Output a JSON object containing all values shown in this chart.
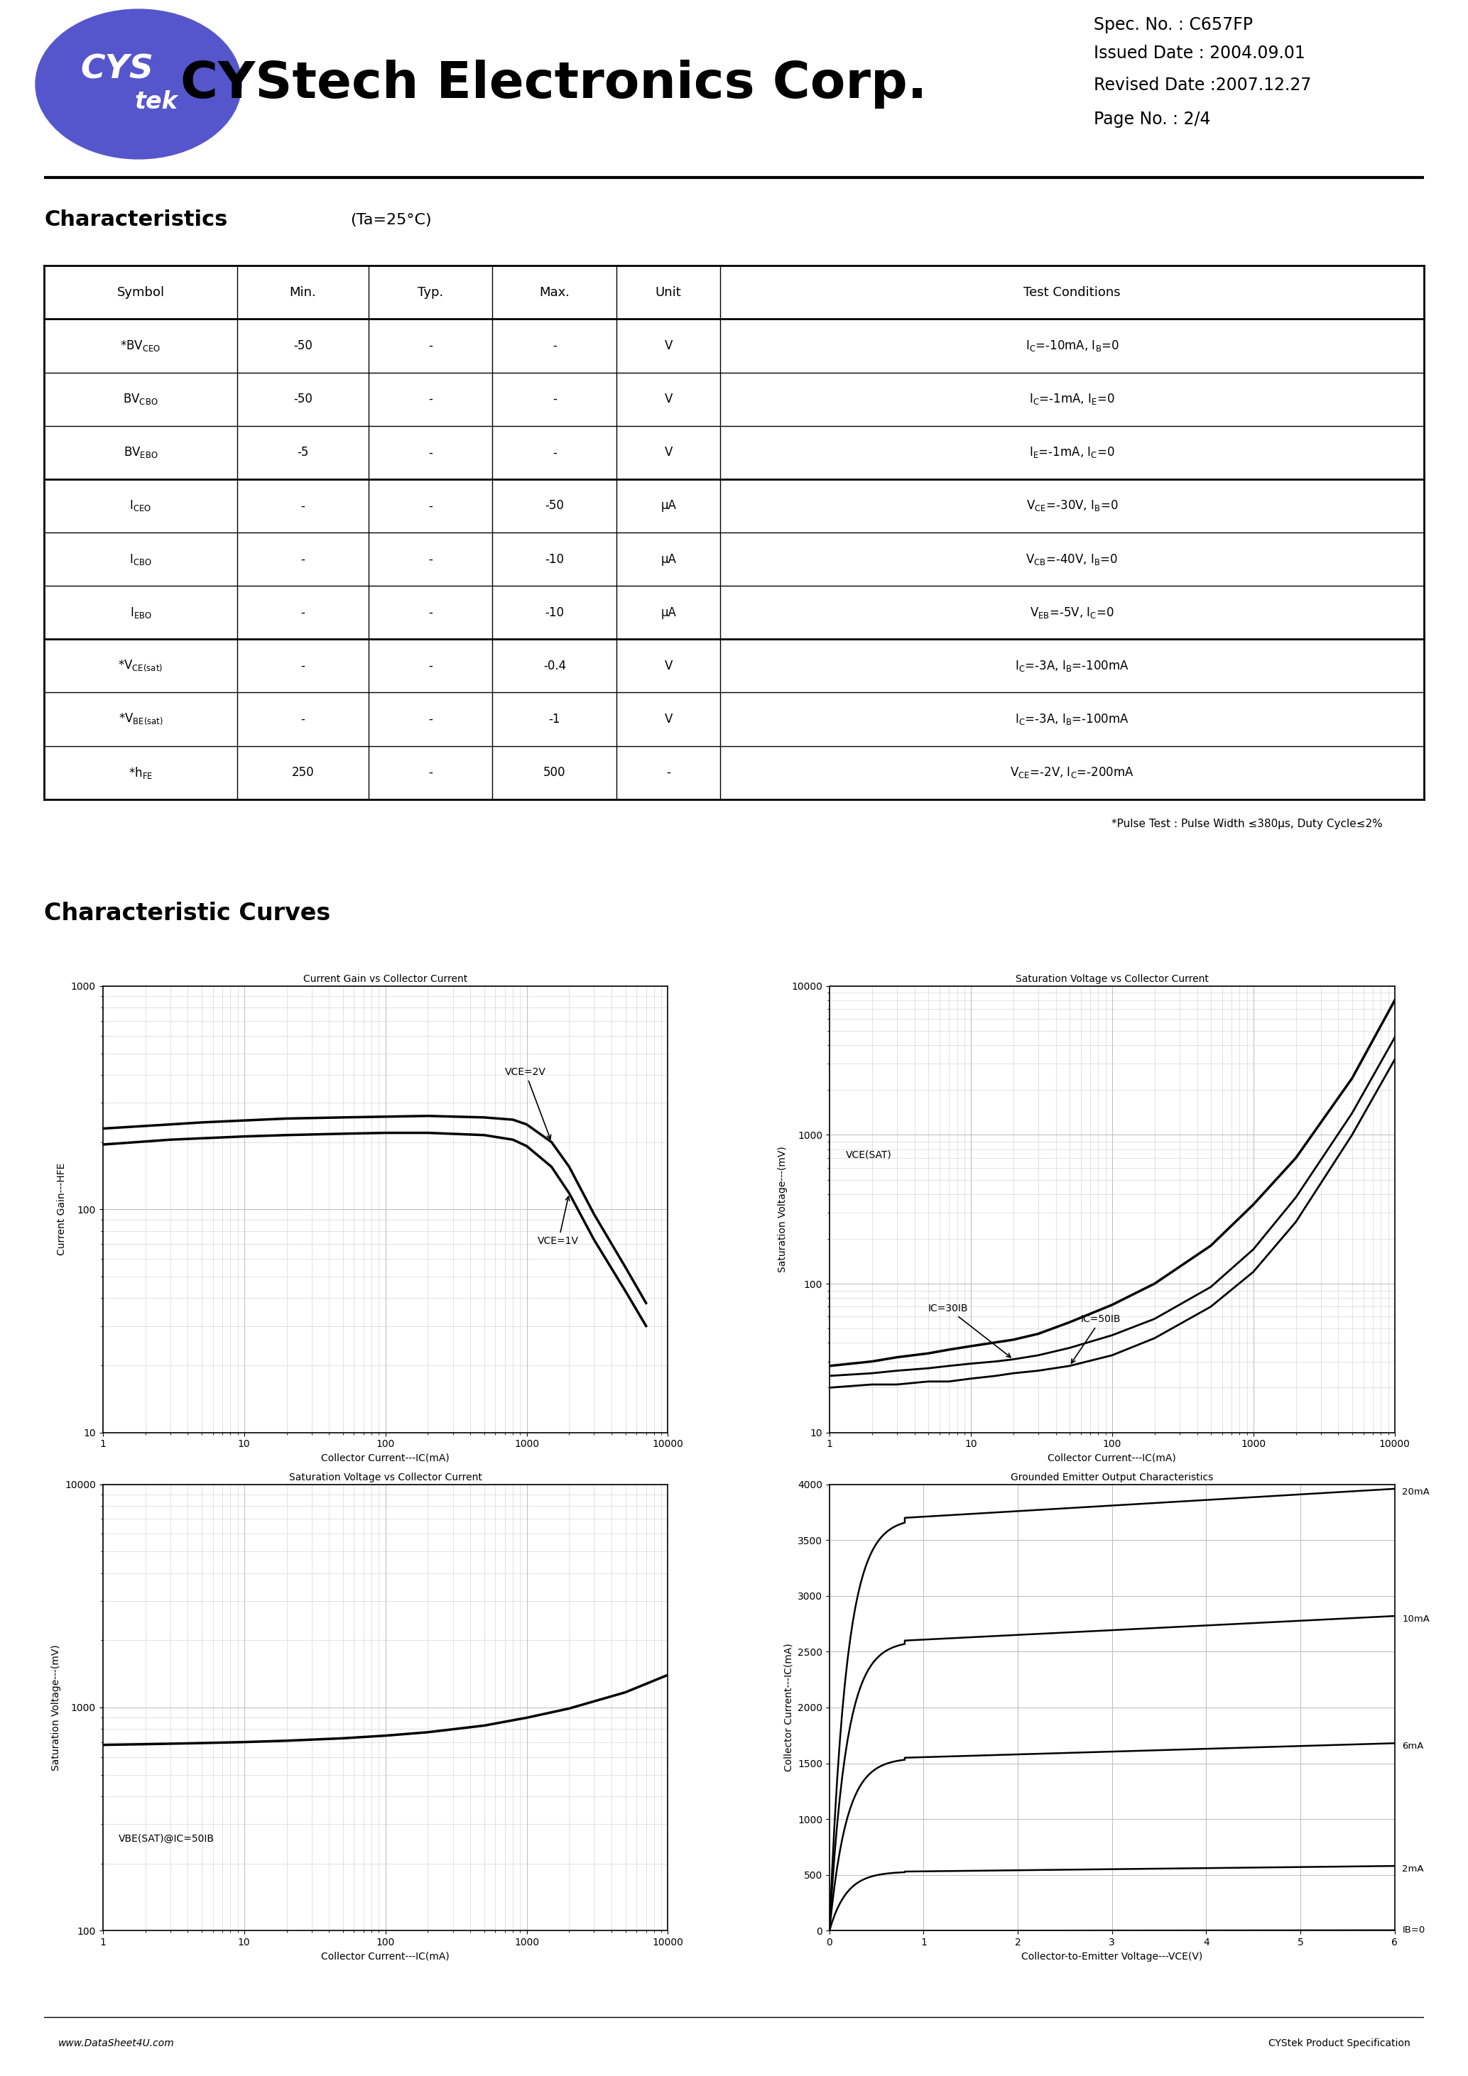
{
  "title_company": "CYStech Electronics Corp.",
  "spec_no": "Spec. No. : C657FP",
  "issued_date": "Issued Date : 2004.09.01",
  "revised_date": "Revised Date :2007.12.27",
  "page_no": "Page No. : 2/4",
  "section_title": "Characteristics",
  "section_subtitle": "(Ta=25°C)",
  "table_headers": [
    "Symbol",
    "Min.",
    "Typ.",
    "Max.",
    "Unit",
    "Test Conditions"
  ],
  "symbols_display": [
    "*BV$_{\\mathsf{CEO}}$",
    "BV$_{\\mathsf{CBO}}$",
    "BV$_{\\mathsf{EBO}}$",
    "I$_{\\mathsf{CEO}}$",
    "I$_{\\mathsf{CBO}}$",
    "I$_{\\mathsf{EBO}}$",
    "*V$_{\\mathsf{CE(sat)}}$",
    "*V$_{\\mathsf{BE(sat)}}$",
    "*h$_{\\mathsf{FE}}$"
  ],
  "min_vals": [
    "-50",
    "-50",
    "-5",
    "-",
    "-",
    "-",
    "-",
    "-",
    "250"
  ],
  "typ_vals": [
    "-",
    "-",
    "-",
    "-",
    "-",
    "-",
    "-",
    "-",
    "-"
  ],
  "max_vals": [
    "-",
    "-",
    "-",
    "-50",
    "-10",
    "-10",
    "-0.4",
    "-1",
    "500"
  ],
  "units": [
    "V",
    "V",
    "V",
    "μA",
    "μA",
    "μA",
    "V",
    "V",
    "-"
  ],
  "conditions": [
    "I$_{\\mathsf{C}}$=-10mA, I$_{\\mathsf{B}}$=0",
    "I$_{\\mathsf{C}}$=-1mA, I$_{\\mathsf{E}}$=0",
    "I$_{\\mathsf{E}}$=-1mA, I$_{\\mathsf{C}}$=0",
    "V$_{\\mathsf{CE}}$=-30V, I$_{\\mathsf{B}}$=0",
    "V$_{\\mathsf{CB}}$=-40V, I$_{\\mathsf{B}}$=0",
    "V$_{\\mathsf{EB}}$=-5V, I$_{\\mathsf{C}}$=0",
    "I$_{\\mathsf{C}}$=-3A, I$_{\\mathsf{B}}$=-100mA",
    "I$_{\\mathsf{C}}$=-3A, I$_{\\mathsf{B}}$=-100mA",
    "V$_{\\mathsf{CE}}$=-2V, I$_{\\mathsf{C}}$=-200mA"
  ],
  "pulse_test_note": "*Pulse Test : Pulse Width ≤380μs, Duty Cycle≤2%",
  "curves_title": "Characteristic Curves",
  "plot1_title": "Current Gain vs Collector Current",
  "plot1_xlabel": "Collector Current---IC(mA)",
  "plot1_ylabel": "Current Gain---HFE",
  "plot2_title": "Saturation Voltage vs Collector Current",
  "plot2_xlabel": "Collector Current---IC(mA)",
  "plot2_ylabel": "Saturation Voltage---(mV)",
  "plot3_title": "Saturation Voltage vs Collector Current",
  "plot3_xlabel": "Collector Current---IC(mA)",
  "plot3_ylabel": "Saturation Voltage---(mV)",
  "plot4_title": "Grounded Emitter Output Characteristics",
  "plot4_xlabel": "Collector-to-Emitter Voltage---VCE(V)",
  "plot4_ylabel": "Collector Current---IC(mA)",
  "background_color": "#ffffff",
  "grid_color": "#aaaaaa",
  "footer_left": "www.DataSheet4U.com",
  "footer_right": "CYStek Product Specification",
  "logo_color": "#5555cc",
  "thick_rows": [
    3,
    6
  ]
}
